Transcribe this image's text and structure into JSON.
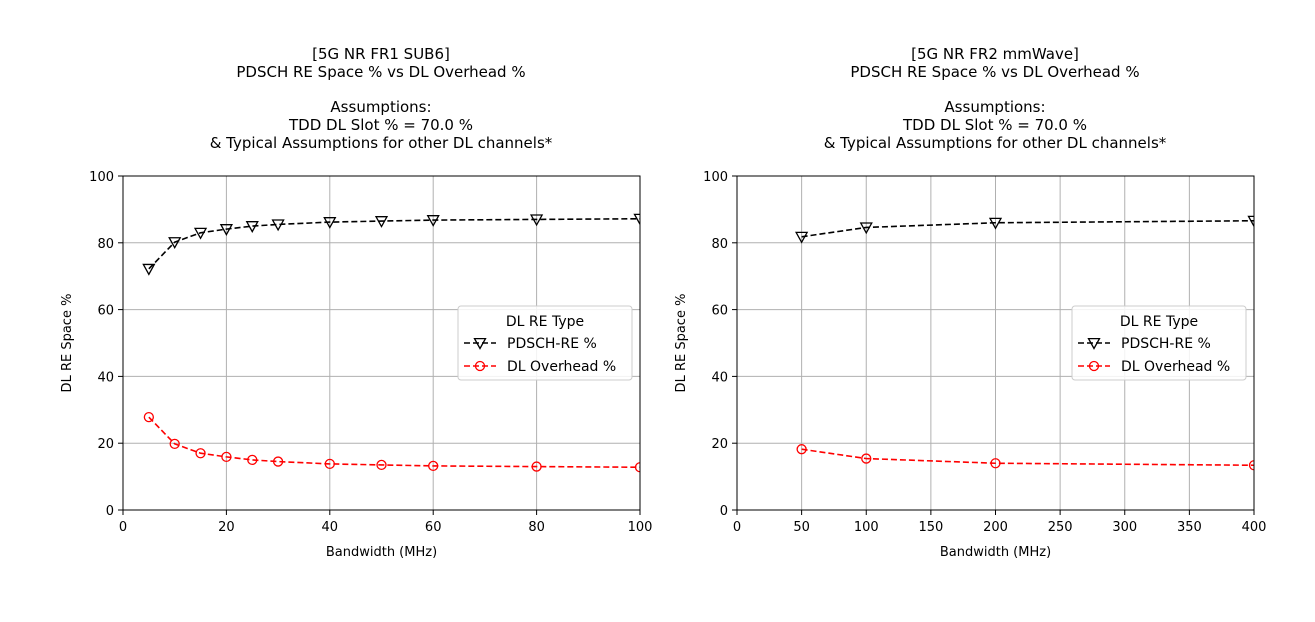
{
  "chart_data": [
    {
      "type": "line",
      "title_lines": [
        "[5G NR FR1 SUB6]",
        "PDSCH RE Space % vs DL Overhead %",
        "",
        "Assumptions:",
        "TDD DL Slot % = 70.0 %",
        "& Typical Assumptions for other DL channels*"
      ],
      "xlabel": "Bandwidth (MHz)",
      "ylabel": "DL RE Space %",
      "xlim": [
        0,
        100
      ],
      "ylim": [
        0,
        100
      ],
      "xticks": [
        0,
        20,
        40,
        60,
        80,
        100
      ],
      "yticks": [
        0,
        20,
        40,
        60,
        80,
        100
      ],
      "grid": true,
      "legend_title": "DL RE Type",
      "legend_position": "center-right",
      "x": [
        5,
        10,
        15,
        20,
        25,
        30,
        40,
        50,
        60,
        80,
        100
      ],
      "series": [
        {
          "name": "PDSCH-RE %",
          "color": "#000000",
          "marker": "triangle-down",
          "linestyle": "dashed",
          "values": [
            72.2,
            80.2,
            83.0,
            84.1,
            85.0,
            85.5,
            86.2,
            86.5,
            86.8,
            87.0,
            87.2
          ]
        },
        {
          "name": "DL Overhead %",
          "color": "#ff0000",
          "marker": "circle",
          "linestyle": "dashed",
          "values": [
            27.8,
            19.8,
            17.0,
            15.9,
            15.0,
            14.5,
            13.8,
            13.5,
            13.2,
            13.0,
            12.8
          ]
        }
      ]
    },
    {
      "type": "line",
      "title_lines": [
        "[5G NR FR2 mmWave]",
        "PDSCH RE Space % vs DL Overhead %",
        "",
        "Assumptions:",
        "TDD DL Slot % = 70.0 %",
        "& Typical Assumptions for other DL channels*"
      ],
      "xlabel": "Bandwidth (MHz)",
      "ylabel": "DL RE Space %",
      "xlim": [
        0,
        400
      ],
      "ylim": [
        0,
        100
      ],
      "xticks": [
        0,
        50,
        100,
        150,
        200,
        250,
        300,
        350,
        400
      ],
      "yticks": [
        0,
        20,
        40,
        60,
        80,
        100
      ],
      "grid": true,
      "legend_title": "DL RE Type",
      "legend_position": "center-right",
      "x": [
        50,
        100,
        200,
        400
      ],
      "series": [
        {
          "name": "PDSCH-RE %",
          "color": "#000000",
          "marker": "triangle-down",
          "linestyle": "dashed",
          "values": [
            81.8,
            84.6,
            86.0,
            86.6
          ]
        },
        {
          "name": "DL Overhead %",
          "color": "#ff0000",
          "marker": "circle",
          "linestyle": "dashed",
          "values": [
            18.2,
            15.4,
            14.0,
            13.4
          ]
        }
      ]
    }
  ]
}
